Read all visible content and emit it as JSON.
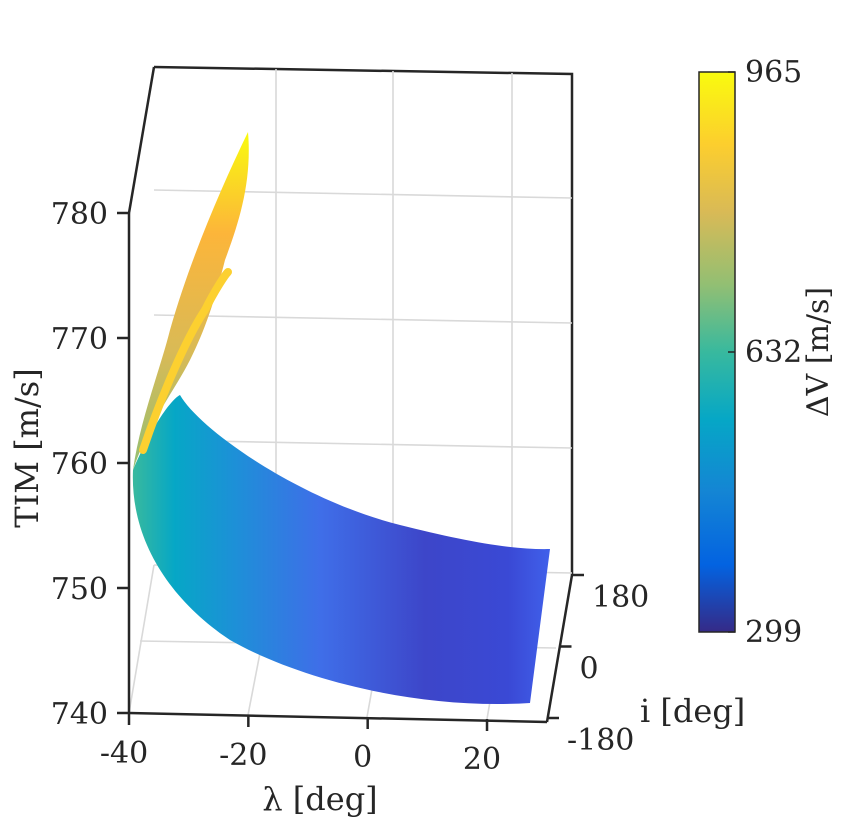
{
  "chart_data": {
    "type": "surface3d",
    "axes": {
      "x": {
        "label": "λ [deg]",
        "ticks": [
          -40,
          -20,
          0,
          20
        ],
        "lim": [
          -40,
          30
        ]
      },
      "y": {
        "label": "i [deg]",
        "ticks": [
          -180,
          0,
          180
        ],
        "lim": [
          -180,
          180
        ]
      },
      "z": {
        "label": "TIM [m/s]",
        "ticks": [
          740,
          750,
          760,
          770,
          780
        ],
        "lim": [
          740,
          790
        ]
      }
    },
    "colorbar": {
      "label": "ΔV [m/s]",
      "ticks": [
        299,
        632,
        965
      ],
      "range": [
        299,
        965
      ],
      "colormap": "parula",
      "colors": [
        "#352a87",
        "#0363e1",
        "#1485d4",
        "#06a7c6",
        "#38b99e",
        "#92bf73",
        "#d9ba56",
        "#fcce2e",
        "#f9fb0e"
      ]
    },
    "grid": true,
    "surface_samples": [
      {
        "lambda": -37,
        "inclination": 0,
        "tim": 756.0,
        "dv": 600
      },
      {
        "lambda": -30,
        "inclination": 0,
        "tim": 752.0,
        "dv": 540
      },
      {
        "lambda": -20,
        "inclination": 0,
        "tim": 748.5,
        "dv": 470
      },
      {
        "lambda": -10,
        "inclination": 0,
        "tim": 746.0,
        "dv": 400
      },
      {
        "lambda": 0,
        "inclination": 0,
        "tim": 744.5,
        "dv": 340
      },
      {
        "lambda": 10,
        "inclination": 0,
        "tim": 744.0,
        "dv": 305
      },
      {
        "lambda": 20,
        "inclination": 0,
        "tim": 744.5,
        "dv": 320
      },
      {
        "lambda": 28,
        "inclination": 0,
        "tim": 745.5,
        "dv": 380
      },
      {
        "lambda": -36,
        "inclination": 0,
        "tim": 762.0,
        "dv": 700
      },
      {
        "lambda": -34,
        "inclination": 0,
        "tim": 770.0,
        "dv": 850
      },
      {
        "lambda": -31,
        "inclination": 0,
        "tim": 785.0,
        "dv": 965
      }
    ]
  }
}
